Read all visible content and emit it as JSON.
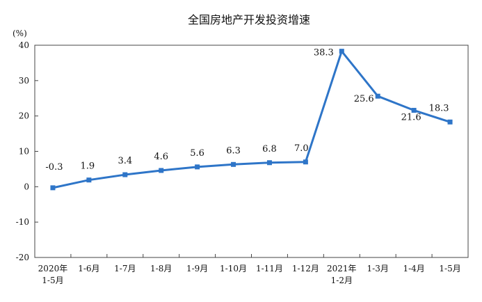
{
  "chart_data": {
    "type": "line",
    "title": "全国房地产开发投资增速",
    "unit_label": "(%)",
    "categories": [
      [
        "2020年",
        "1-5月"
      ],
      [
        "1-6月"
      ],
      [
        "1-7月"
      ],
      [
        "1-8月"
      ],
      [
        "1-9月"
      ],
      [
        "1-10月"
      ],
      [
        "1-11月"
      ],
      [
        "1-12月"
      ],
      [
        "2021年",
        "1-2月"
      ],
      [
        "1-3月"
      ],
      [
        "1-4月"
      ],
      [
        "1-5月"
      ]
    ],
    "values": [
      -0.3,
      1.9,
      3.4,
      4.6,
      5.6,
      6.3,
      6.8,
      7.0,
      38.3,
      25.6,
      21.6,
      18.3
    ],
    "data_labels": [
      "-0.3",
      "1.9",
      "3.4",
      "4.6",
      "5.6",
      "6.3",
      "6.8",
      "7.0",
      "38.3",
      "25.6",
      "21.6",
      "18.3"
    ],
    "ylim": [
      -20,
      40
    ],
    "yticks": [
      -20,
      -10,
      0,
      10,
      20,
      30,
      40
    ],
    "ytick_labels": [
      "-20",
      "-10",
      "0",
      "10",
      "20",
      "30",
      "40"
    ],
    "line_color": "#2e75c8",
    "grid": false,
    "legend": "none"
  }
}
